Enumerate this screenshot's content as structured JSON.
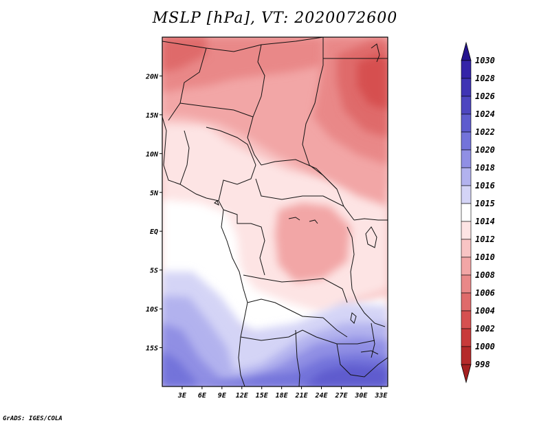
{
  "title": "MSLP [hPa], VT: 2020072600",
  "credit": "GrADS: IGES/COLA",
  "map": {
    "region": "Central and Southern Africa",
    "lon_range": [
      0,
      34
    ],
    "lat_range": [
      -20,
      25
    ],
    "lat_ticks": [
      {
        "label": "20N",
        "value": 20
      },
      {
        "label": "15N",
        "value": 15
      },
      {
        "label": "10N",
        "value": 10
      },
      {
        "label": "5N",
        "value": 5
      },
      {
        "label": "EQ",
        "value": 0
      },
      {
        "label": "5S",
        "value": -5
      },
      {
        "label": "10S",
        "value": -10
      },
      {
        "label": "15S",
        "value": -15
      }
    ],
    "lon_ticks": [
      {
        "label": "3E",
        "value": 3
      },
      {
        "label": "6E",
        "value": 6
      },
      {
        "label": "9E",
        "value": 9
      },
      {
        "label": "12E",
        "value": 12
      },
      {
        "label": "15E",
        "value": 15
      },
      {
        "label": "18E",
        "value": 18
      },
      {
        "label": "21E",
        "value": 21
      },
      {
        "label": "24E",
        "value": 24
      },
      {
        "label": "27E",
        "value": 27
      },
      {
        "label": "30E",
        "value": 30
      },
      {
        "label": "33E",
        "value": 33
      }
    ]
  },
  "colorbar": {
    "levels": [
      {
        "label": "1030",
        "color": "#2b1a9e"
      },
      {
        "label": "1028",
        "color": "#3424a8"
      },
      {
        "label": "1026",
        "color": "#3f34b4"
      },
      {
        "label": "1024",
        "color": "#4d46c0"
      },
      {
        "label": "1022",
        "color": "#5e5cce"
      },
      {
        "label": "1020",
        "color": "#7373da"
      },
      {
        "label": "1018",
        "color": "#908fe4"
      },
      {
        "label": "1016",
        "color": "#b2b2ee"
      },
      {
        "label": "1015",
        "color": "#d4d4f6"
      },
      {
        "label": "1014",
        "color": "#ffffff"
      },
      {
        "label": "1012",
        "color": "#fde4e4"
      },
      {
        "label": "1010",
        "color": "#f8c4c4"
      },
      {
        "label": "1008",
        "color": "#f2a6a6"
      },
      {
        "label": "1006",
        "color": "#e98888"
      },
      {
        "label": "1004",
        "color": "#df6b6b"
      },
      {
        "label": "1002",
        "color": "#d65050"
      },
      {
        "label": "1000",
        "color": "#c83a3a"
      },
      {
        "label": "998",
        "color": "#b52a2a"
      }
    ],
    "top_arrow_color": "#25148f",
    "bottom_arrow_color": "#a52020"
  }
}
